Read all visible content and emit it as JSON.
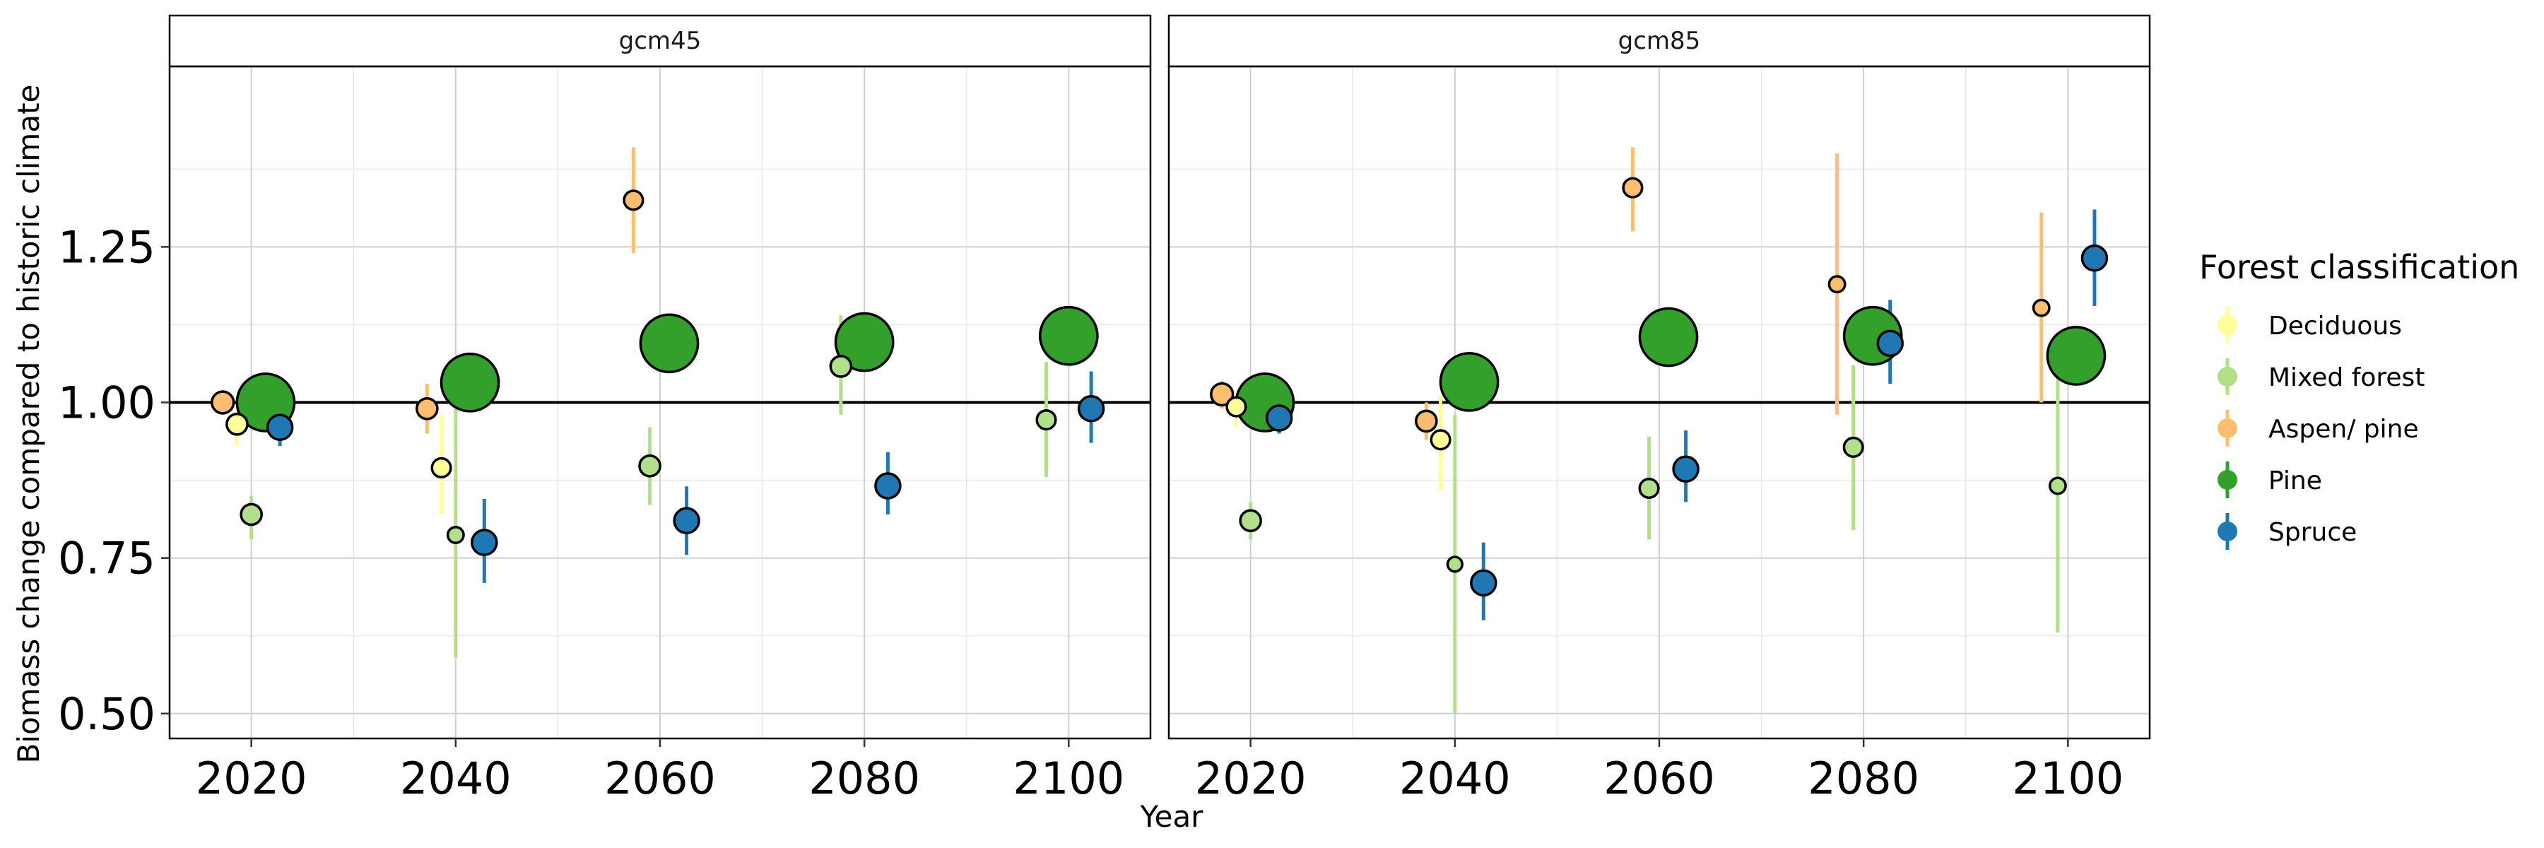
{
  "chart_data": {
    "type": "scatter",
    "ylabel": "Biomass change compared to historic climate",
    "xlabel": "Year",
    "ylim": [
      0.46,
      1.54
    ],
    "xlim": [
      2012,
      2108
    ],
    "yticks": [
      "0.50",
      "0.75",
      "1.00",
      "1.25"
    ],
    "ytick_values": [
      0.5,
      0.75,
      1.0,
      1.25
    ],
    "xticks": [
      "2020",
      "2040",
      "2060",
      "2080",
      "2100"
    ],
    "xtick_values": [
      2020,
      2040,
      2060,
      2080,
      2100
    ],
    "reference_line": 1.0,
    "grid": true,
    "legend_position": "right",
    "legend": {
      "title": "Forest classification",
      "entries": [
        {
          "name": "Deciduous",
          "color": "#ffff99"
        },
        {
          "name": "Mixed forest",
          "color": "#b2df8a"
        },
        {
          "name": "Aspen/ pine",
          "color": "#fdbf6f"
        },
        {
          "name": "Pine",
          "color": "#33a02c"
        },
        {
          "name": "Spruce",
          "color": "#1f78b4"
        }
      ]
    },
    "panels": [
      {
        "title": "gcm45",
        "points": [
          {
            "series": "Aspen/ pine",
            "year": 2020,
            "x": 2017.2,
            "y": 1.0,
            "low": 0.98,
            "high": 1.02,
            "size": 0.2
          },
          {
            "series": "Deciduous",
            "year": 2020,
            "x": 2018.6,
            "y": 0.965,
            "low": 0.93,
            "high": 0.99,
            "size": 0.18
          },
          {
            "series": "Mixed forest",
            "year": 2020,
            "x": 2020.0,
            "y": 0.82,
            "low": 0.78,
            "high": 0.85,
            "size": 0.18
          },
          {
            "series": "Pine",
            "year": 2020,
            "x": 2021.4,
            "y": 1.0,
            "low": 0.99,
            "high": 1.01,
            "size": 0.8
          },
          {
            "series": "Spruce",
            "year": 2020,
            "x": 2022.8,
            "y": 0.96,
            "low": 0.93,
            "high": 0.98,
            "size": 0.25
          },
          {
            "series": "Aspen/ pine",
            "year": 2040,
            "x": 2037.2,
            "y": 0.99,
            "low": 0.95,
            "high": 1.03,
            "size": 0.18
          },
          {
            "series": "Deciduous",
            "year": 2040,
            "x": 2038.6,
            "y": 0.895,
            "low": 0.82,
            "high": 0.98,
            "size": 0.15
          },
          {
            "series": "Mixed forest",
            "year": 2040,
            "x": 2040.0,
            "y": 0.787,
            "low": 0.59,
            "high": 0.99,
            "size": 0.1
          },
          {
            "series": "Pine",
            "year": 2040,
            "x": 2041.4,
            "y": 1.032,
            "low": 1.01,
            "high": 1.05,
            "size": 0.8
          },
          {
            "series": "Spruce",
            "year": 2040,
            "x": 2042.8,
            "y": 0.775,
            "low": 0.71,
            "high": 0.845,
            "size": 0.25
          },
          {
            "series": "Aspen/ pine",
            "year": 2060,
            "x": 2057.4,
            "y": 1.325,
            "low": 1.24,
            "high": 1.41,
            "size": 0.15
          },
          {
            "series": "Mixed forest",
            "year": 2060,
            "x": 2059.0,
            "y": 0.898,
            "low": 0.835,
            "high": 0.96,
            "size": 0.18
          },
          {
            "series": "Pine",
            "year": 2060,
            "x": 2060.9,
            "y": 1.095,
            "low": 1.07,
            "high": 1.12,
            "size": 0.8
          },
          {
            "series": "Spruce",
            "year": 2060,
            "x": 2062.6,
            "y": 0.81,
            "low": 0.755,
            "high": 0.865,
            "size": 0.25
          },
          {
            "series": "Mixed forest",
            "year": 2080,
            "x": 2077.7,
            "y": 1.058,
            "low": 0.98,
            "high": 1.14,
            "size": 0.18
          },
          {
            "series": "Pine",
            "year": 2080,
            "x": 2080.0,
            "y": 1.097,
            "low": 1.07,
            "high": 1.12,
            "size": 0.8
          },
          {
            "series": "Spruce",
            "year": 2080,
            "x": 2082.3,
            "y": 0.866,
            "low": 0.82,
            "high": 0.92,
            "size": 0.25
          },
          {
            "series": "Mixed forest",
            "year": 2100,
            "x": 2097.8,
            "y": 0.972,
            "low": 0.88,
            "high": 1.065,
            "size": 0.15
          },
          {
            "series": "Pine",
            "year": 2100,
            "x": 2100.0,
            "y": 1.107,
            "low": 1.08,
            "high": 1.13,
            "size": 0.8
          },
          {
            "series": "Spruce",
            "year": 2100,
            "x": 2102.2,
            "y": 0.99,
            "low": 0.935,
            "high": 1.05,
            "size": 0.25
          }
        ]
      },
      {
        "title": "gcm85",
        "points": [
          {
            "series": "Aspen/ pine",
            "year": 2020,
            "x": 2017.2,
            "y": 1.013,
            "low": 0.99,
            "high": 1.035,
            "size": 0.2
          },
          {
            "series": "Deciduous",
            "year": 2020,
            "x": 2018.6,
            "y": 0.993,
            "low": 0.96,
            "high": 1.02,
            "size": 0.15
          },
          {
            "series": "Mixed forest",
            "year": 2020,
            "x": 2020.0,
            "y": 0.81,
            "low": 0.78,
            "high": 0.84,
            "size": 0.18
          },
          {
            "series": "Pine",
            "year": 2020,
            "x": 2021.4,
            "y": 1.0,
            "low": 0.99,
            "high": 1.01,
            "size": 0.8
          },
          {
            "series": "Spruce",
            "year": 2020,
            "x": 2022.8,
            "y": 0.975,
            "low": 0.95,
            "high": 1.0,
            "size": 0.25
          },
          {
            "series": "Aspen/ pine",
            "year": 2040,
            "x": 2037.2,
            "y": 0.97,
            "low": 0.94,
            "high": 1.0,
            "size": 0.18
          },
          {
            "series": "Deciduous",
            "year": 2040,
            "x": 2038.6,
            "y": 0.94,
            "low": 0.86,
            "high": 1.01,
            "size": 0.15
          },
          {
            "series": "Mixed forest",
            "year": 2040,
            "x": 2040.0,
            "y": 0.74,
            "low": 0.5,
            "high": 0.98,
            "size": 0.08
          },
          {
            "series": "Pine",
            "year": 2040,
            "x": 2041.4,
            "y": 1.033,
            "low": 1.01,
            "high": 1.05,
            "size": 0.8
          },
          {
            "series": "Spruce",
            "year": 2040,
            "x": 2042.8,
            "y": 0.71,
            "low": 0.65,
            "high": 0.775,
            "size": 0.25
          },
          {
            "series": "Aspen/ pine",
            "year": 2060,
            "x": 2057.4,
            "y": 1.345,
            "low": 1.275,
            "high": 1.41,
            "size": 0.15
          },
          {
            "series": "Mixed forest",
            "year": 2060,
            "x": 2059.0,
            "y": 0.862,
            "low": 0.78,
            "high": 0.945,
            "size": 0.15
          },
          {
            "series": "Pine",
            "year": 2060,
            "x": 2060.9,
            "y": 1.105,
            "low": 1.08,
            "high": 1.13,
            "size": 0.8
          },
          {
            "series": "Spruce",
            "year": 2060,
            "x": 2062.6,
            "y": 0.893,
            "low": 0.84,
            "high": 0.955,
            "size": 0.25
          },
          {
            "series": "Aspen/ pine",
            "year": 2080,
            "x": 2077.4,
            "y": 1.19,
            "low": 0.98,
            "high": 1.4,
            "size": 0.1
          },
          {
            "series": "Mixed forest",
            "year": 2080,
            "x": 2079.0,
            "y": 0.928,
            "low": 0.795,
            "high": 1.06,
            "size": 0.15
          },
          {
            "series": "Pine",
            "year": 2080,
            "x": 2080.9,
            "y": 1.107,
            "low": 1.08,
            "high": 1.13,
            "size": 0.8
          },
          {
            "series": "Spruce",
            "year": 2080,
            "x": 2082.6,
            "y": 1.095,
            "low": 1.03,
            "high": 1.165,
            "size": 0.25
          },
          {
            "series": "Aspen/ pine",
            "year": 2100,
            "x": 2097.4,
            "y": 1.152,
            "low": 1.0,
            "high": 1.305,
            "size": 0.1
          },
          {
            "series": "Mixed forest",
            "year": 2100,
            "x": 2099.0,
            "y": 0.866,
            "low": 0.63,
            "high": 1.1,
            "size": 0.1
          },
          {
            "series": "Pine",
            "year": 2100,
            "x": 2100.8,
            "y": 1.075,
            "low": 1.05,
            "high": 1.1,
            "size": 0.8
          },
          {
            "series": "Spruce",
            "year": 2100,
            "x": 2102.6,
            "y": 1.232,
            "low": 1.155,
            "high": 1.31,
            "size": 0.25
          }
        ]
      }
    ]
  }
}
